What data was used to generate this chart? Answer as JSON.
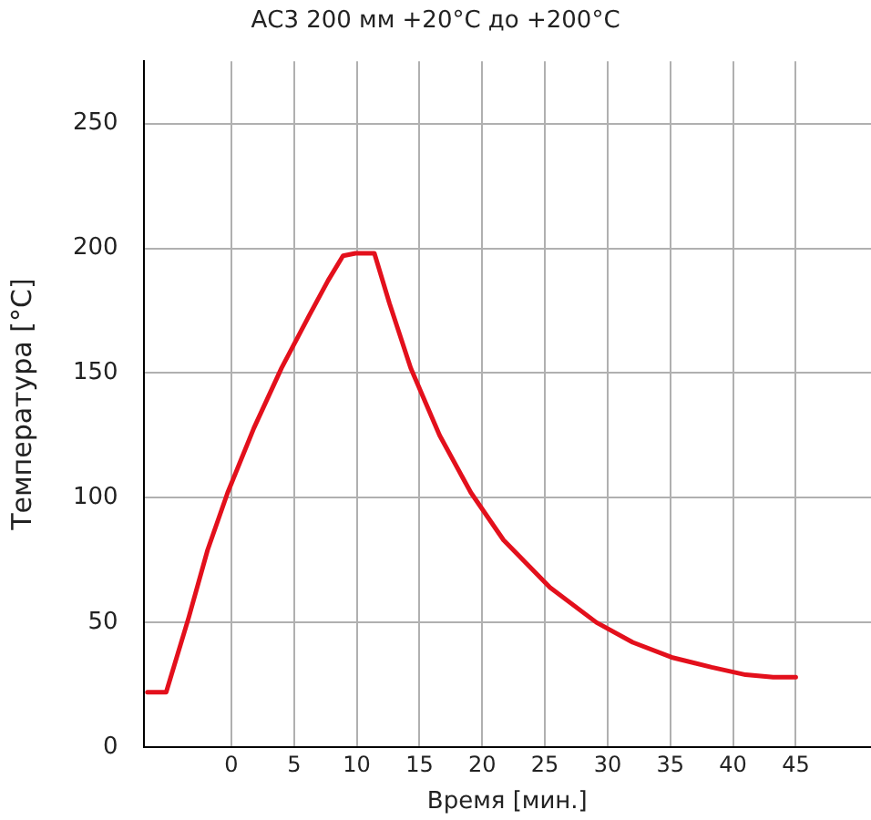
{
  "chart_data": {
    "type": "line",
    "title": "АС3 200 мм +20°C до +200°C",
    "xlabel": "Время [мин.]",
    "ylabel": "Температура [°C]",
    "x": [
      -6.7,
      -5.2,
      -3.4,
      -1.9,
      -0.3,
      1.8,
      4.0,
      6.2,
      7.7,
      8.9,
      9.9,
      11.4,
      12.6,
      14.3,
      16.6,
      19.1,
      21.7,
      25.4,
      29.1,
      32.0,
      35.1,
      38.3,
      41.0,
      43.2,
      45.0
    ],
    "series": [
      {
        "color": "#e3101c",
        "values": [
          22,
          22,
          52,
          79,
          102,
          128,
          152,
          173,
          187,
          197,
          198,
          198,
          178,
          152,
          125,
          102,
          83,
          64,
          50,
          42,
          36,
          32,
          29,
          28,
          28
        ]
      }
    ],
    "xlim": [
      -7,
      51
    ],
    "xticks": [
      0,
      5,
      10,
      15,
      20,
      25,
      30,
      35,
      40,
      45
    ],
    "ylim": [
      0,
      275
    ],
    "yticks": [
      0,
      50,
      100,
      150,
      200,
      250
    ],
    "grid": true,
    "legend": false,
    "marker": "none",
    "line_style": "solid"
  }
}
